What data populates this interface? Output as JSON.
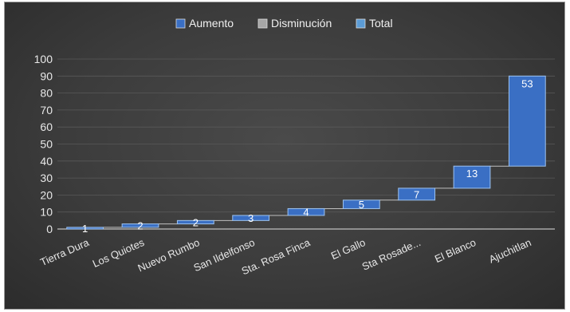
{
  "chart_data": {
    "type": "bar",
    "subtype": "waterfall",
    "categories": [
      "Tierra Dura",
      "Los Quiotes",
      "Nuevo Rumbo",
      "San Ildelfonso",
      "Sta. Rosa Finca",
      "El Gallo",
      "Sta Rosade...",
      "El Blanco",
      "Ajuchitlan"
    ],
    "values": [
      1,
      2,
      2,
      3,
      4,
      5,
      7,
      13,
      53
    ],
    "data_labels": [
      "1",
      "2",
      "2",
      "3",
      "4",
      "5",
      "7",
      "13",
      "53"
    ],
    "legend": [
      {
        "name": "Aumento",
        "color": "#3a6fc4"
      },
      {
        "name": "Disminución",
        "color": "#a6a6a6"
      },
      {
        "name": "Total",
        "color": "#5b9bd5"
      }
    ],
    "legend_position": "top-center",
    "ylim": [
      0,
      100
    ],
    "yticks": [
      "0",
      "10",
      "20",
      "30",
      "40",
      "50",
      "60",
      "70",
      "80",
      "90",
      "100"
    ],
    "grid": true,
    "colors": {
      "increase": "#3a6fc4",
      "increase_border": "#9dc3f0",
      "connector": "#bfbfbf",
      "grid": "#595959",
      "background": "#404040",
      "text": "#e8e8e8"
    }
  }
}
